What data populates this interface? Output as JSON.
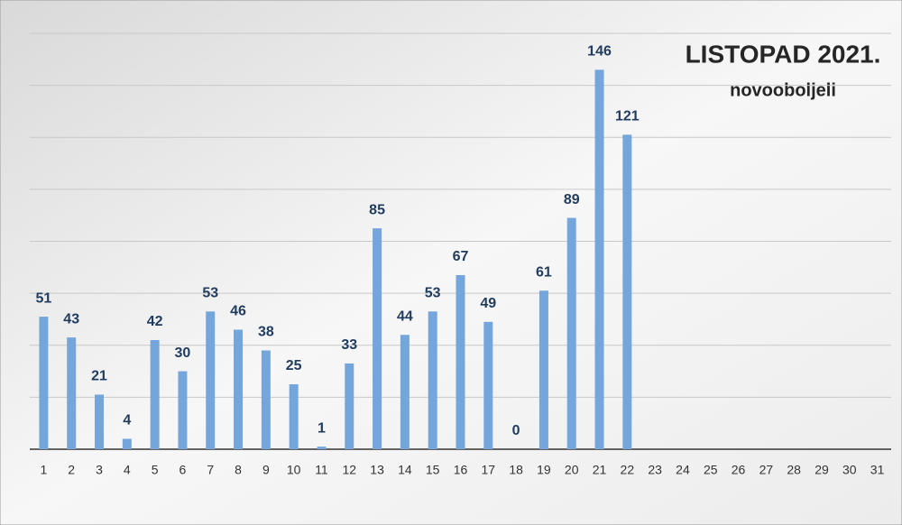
{
  "chart_data": {
    "type": "bar",
    "title": "LISTOPAD 2021.",
    "subtitle": "novooboljeli",
    "categories": [
      "1",
      "2",
      "3",
      "4",
      "5",
      "6",
      "7",
      "8",
      "9",
      "10",
      "11",
      "12",
      "13",
      "14",
      "15",
      "16",
      "17",
      "18",
      "19",
      "20",
      "21",
      "22",
      "23",
      "24",
      "25",
      "26",
      "27",
      "28",
      "29",
      "30",
      "31"
    ],
    "values": [
      51,
      43,
      21,
      4,
      42,
      30,
      53,
      46,
      38,
      25,
      1,
      33,
      85,
      44,
      53,
      67,
      49,
      0,
      61,
      89,
      146,
      121,
      null,
      null,
      null,
      null,
      null,
      null,
      null,
      null,
      null
    ],
    "color": "#74a6dc",
    "ylim": [
      0,
      160
    ],
    "gridlines": [
      20,
      40,
      60,
      80,
      100,
      120,
      140,
      160
    ],
    "grid": true
  }
}
